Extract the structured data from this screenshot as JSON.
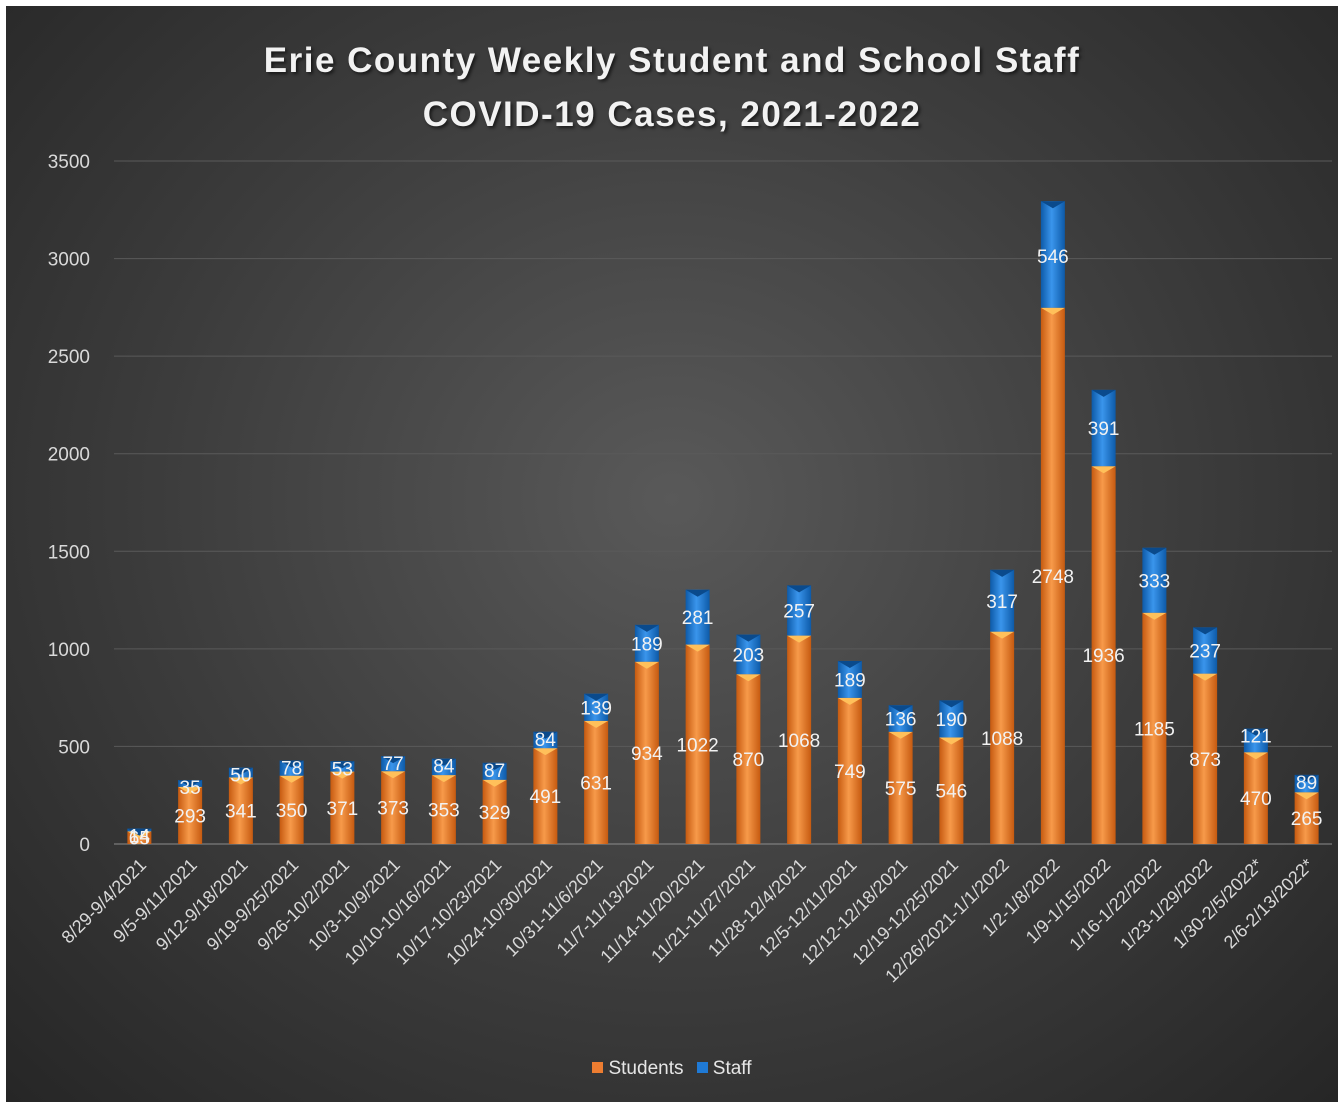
{
  "chart_data": {
    "type": "bar",
    "stacked": true,
    "title": "Erie County Weekly Student and School Staff COVID-19 Cases, 2021-2022",
    "title_lines": [
      "Erie County Weekly Student and School Staff",
      "COVID-19 Cases, 2021-2022"
    ],
    "xlabel": "",
    "ylabel": "",
    "ylim": [
      0,
      3500
    ],
    "yticks": [
      0,
      500,
      1000,
      1500,
      2000,
      2500,
      3000,
      3500
    ],
    "grid": true,
    "legend_position": "bottom",
    "categories": [
      "8/29-9/4/2021",
      "9/5-9/11/2021",
      "9/12-9/18/2021",
      "9/19-9/25/2021",
      "9/26-10/2/2021",
      "10/3-10/9/2021",
      "10/10-10/16/2021",
      "10/17-10/23/2021",
      "10/24-10/30/2021",
      "10/31-11/6/2021",
      "11/7-11/13/2021",
      "11/14-11/20/2021",
      "11/21-11/27/2021",
      "11/28-12/4/2021",
      "12/5-12/11/2021",
      "12/12-12/18/2021",
      "12/19-12/25/2021",
      "12/26/2021-1/1/2022",
      "1/2-1/8/2022",
      "1/9-1/15/2022",
      "1/16-1/22/2022",
      "1/23-1/29/2022",
      "1/30-2/5/2022*",
      "2/6-2/13/2022*"
    ],
    "series": [
      {
        "name": "Students",
        "color": "#ed7d31",
        "values": [
          65,
          293,
          341,
          350,
          371,
          373,
          353,
          329,
          491,
          631,
          934,
          1022,
          870,
          1068,
          749,
          575,
          546,
          1088,
          2748,
          1936,
          1185,
          873,
          470,
          265
        ]
      },
      {
        "name": "Staff",
        "color": "#1f7ad6",
        "values": [
          14,
          35,
          50,
          78,
          53,
          77,
          84,
          87,
          84,
          139,
          189,
          281,
          203,
          257,
          189,
          136,
          190,
          317,
          546,
          391,
          333,
          237,
          121,
          89
        ]
      }
    ]
  }
}
